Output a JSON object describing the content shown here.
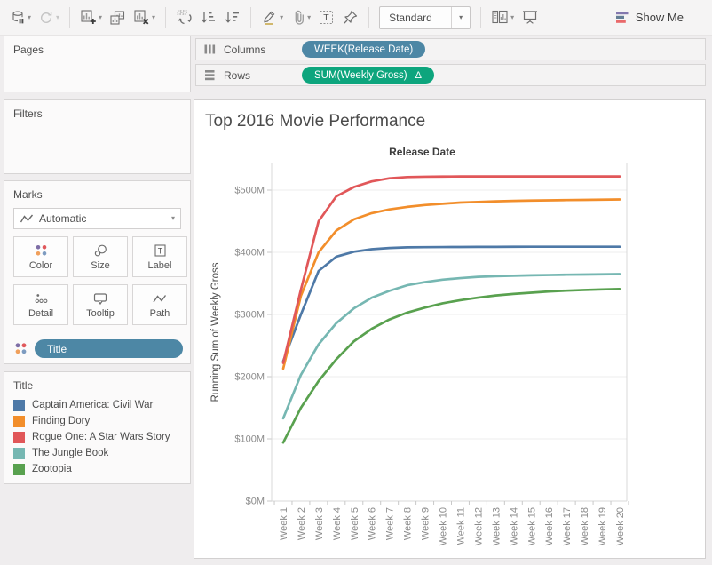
{
  "icons": {
    "caret": "▾",
    "delta": "Δ",
    "label_glyph": "T"
  },
  "toolbar": {
    "fit_mode": "Standard",
    "show_me_label": "Show Me"
  },
  "shelves": {
    "columns_label": "Columns",
    "rows_label": "Rows",
    "columns_pill": "WEEK(Release Date)",
    "rows_pill": "SUM(Weekly Gross)",
    "rows_pill_indicator": "Δ"
  },
  "cards": {
    "pages_label": "Pages",
    "filters_label": "Filters",
    "marks": {
      "label": "Marks",
      "mark_type": "Automatic",
      "color_label": "Color",
      "size_label": "Size",
      "label_label": "Label",
      "detail_label": "Detail",
      "tooltip_label": "Tooltip",
      "path_label": "Path",
      "pill_label": "Title"
    },
    "legend_label": "Title"
  },
  "chart_data": {
    "type": "line",
    "title": "Top 2016 Movie Performance",
    "top_axis_label": "Release Date",
    "ylabel": "Running Sum of Weekly Gross",
    "xlabel": "",
    "grid": "horizontal",
    "legend_position": "left-card",
    "ylim": [
      0,
      540
    ],
    "y_unit": "million USD (running sum)",
    "x_categories": [
      "Week 1",
      "Week 2",
      "Week 3",
      "Week 4",
      "Week 5",
      "Week 6",
      "Week 7",
      "Week 8",
      "Week 9",
      "Week 10",
      "Week 11",
      "Week 12",
      "Week 13",
      "Week 14",
      "Week 15",
      "Week 16",
      "Week 17",
      "Week 18",
      "Week 19",
      "Week 20"
    ],
    "y_ticks": [
      {
        "label": "$0M",
        "value": 0
      },
      {
        "label": "$100M",
        "value": 100
      },
      {
        "label": "$200M",
        "value": 200
      },
      {
        "label": "$300M",
        "value": 300
      },
      {
        "label": "$400M",
        "value": 400
      },
      {
        "label": "$500M",
        "value": 500
      }
    ],
    "series": [
      {
        "name": "Captain America: Civil War",
        "color": "#4e79a7",
        "values": [
          225,
          300,
          370,
          393,
          401,
          405,
          407,
          408,
          408.3,
          408.5,
          408.6,
          408.7,
          408.8,
          408.9,
          409,
          409,
          409,
          409,
          409,
          409
        ]
      },
      {
        "name": "Finding Dory",
        "color": "#f28e2b",
        "values": [
          213,
          330,
          400,
          435,
          453,
          463,
          469,
          473,
          476,
          478,
          480,
          481,
          482,
          482.7,
          483.2,
          483.6,
          484,
          484.3,
          484.6,
          485
        ]
      },
      {
        "name": "Rogue One: A Star Wars Story",
        "color": "#e15759",
        "values": [
          222,
          340,
          450,
          490,
          505,
          514,
          519,
          521,
          521.5,
          521.8,
          522,
          522,
          522,
          522,
          522,
          522,
          522,
          522,
          522,
          522
        ]
      },
      {
        "name": "The Jungle Book",
        "color": "#76b7b2",
        "values": [
          133,
          203,
          252,
          286,
          310,
          327,
          338,
          347,
          352,
          356,
          358.5,
          360.5,
          361.5,
          362.3,
          363,
          363.5,
          364,
          364.3,
          364.6,
          365
        ]
      },
      {
        "name": "Zootopia",
        "color": "#59a14f",
        "values": [
          94,
          150,
          193,
          228,
          257,
          277,
          292,
          303,
          311,
          318,
          323,
          327,
          330.5,
          333,
          335,
          337,
          338.3,
          339.4,
          340.3,
          341
        ]
      }
    ]
  }
}
